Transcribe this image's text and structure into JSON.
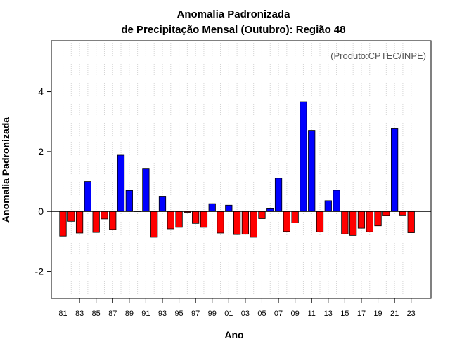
{
  "chart_data": {
    "type": "bar",
    "title": "Anomalia Padronizada",
    "subtitle": "de Precipitação Mensal (Outubro): Região 48",
    "xlabel": "Ano",
    "ylabel": "Anomalia Padronizada",
    "annotation": "(Produto:CPTEC/INPE)",
    "ylim": [
      -2.9,
      5.7
    ],
    "xlim": [
      1979.6,
      2025.4
    ],
    "yticks": [
      -2,
      0,
      2,
      4
    ],
    "xtick_labels": [
      "81",
      "83",
      "85",
      "87",
      "89",
      "91",
      "93",
      "95",
      "97",
      "99",
      "01",
      "03",
      "05",
      "07",
      "09",
      "11",
      "13",
      "15",
      "17",
      "19",
      "21",
      "23"
    ],
    "xtick_years": [
      1981,
      1983,
      1985,
      1987,
      1989,
      1991,
      1993,
      1995,
      1997,
      1999,
      2001,
      2003,
      2005,
      2007,
      2009,
      2011,
      2013,
      2015,
      2017,
      2019,
      2021,
      2023
    ],
    "grid": "vertical-dotted",
    "colors": {
      "positive": "#0000ff",
      "negative": "#ff0000",
      "zero_line": "#000000",
      "grid": "#d3d3d3"
    },
    "years": [
      1981,
      1982,
      1983,
      1984,
      1985,
      1986,
      1987,
      1988,
      1989,
      1990,
      1991,
      1992,
      1993,
      1994,
      1995,
      1996,
      1997,
      1998,
      1999,
      2000,
      2001,
      2002,
      2003,
      2004,
      2005,
      2006,
      2007,
      2008,
      2009,
      2010,
      2011,
      2012,
      2013,
      2014,
      2015,
      2016,
      2017,
      2018,
      2019,
      2020,
      2021,
      2022,
      2023
    ],
    "values": [
      -0.82,
      -0.33,
      -0.72,
      1.0,
      -0.7,
      -0.25,
      -0.6,
      1.88,
      0.7,
      0.01,
      1.42,
      -0.86,
      0.51,
      -0.58,
      -0.53,
      -0.03,
      -0.4,
      -0.53,
      0.26,
      -0.72,
      0.21,
      -0.77,
      -0.76,
      -0.86,
      -0.24,
      0.09,
      1.11,
      -0.67,
      -0.38,
      3.66,
      2.71,
      -0.68,
      0.36,
      0.71,
      -0.75,
      -0.8,
      -0.56,
      -0.68,
      -0.48,
      -0.13,
      2.76,
      -0.12,
      -0.71
    ]
  }
}
